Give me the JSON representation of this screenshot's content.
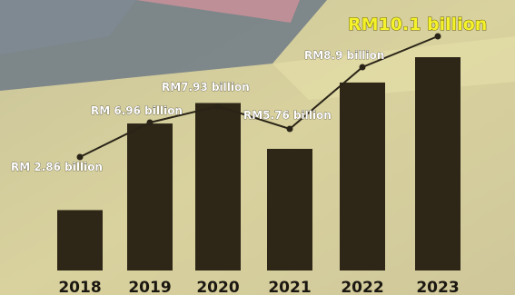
{
  "chart_data": {
    "type": "bar",
    "title": "",
    "xlabel": "",
    "ylabel": "",
    "categories": [
      "2018",
      "2019",
      "2020",
      "2021",
      "2022",
      "2023"
    ],
    "values": [
      2.86,
      6.96,
      7.93,
      5.76,
      8.9,
      10.1
    ],
    "unit": "RM billion",
    "data_labels": [
      "RM 2.86 billion",
      "RM 6.96 billion",
      "RM7.93 billion",
      "RM5.76 billion",
      "RM8.9 billion",
      "RM10.1 billion"
    ],
    "highlight_index": 5,
    "line_overlay": true,
    "grid": false,
    "legend": "none",
    "colors": {
      "bar": "#2e2616",
      "line": "#2a2418",
      "label_text": "#ffffff",
      "highlight_text": "#f4f22a",
      "axis_text": "#1b1711"
    }
  }
}
